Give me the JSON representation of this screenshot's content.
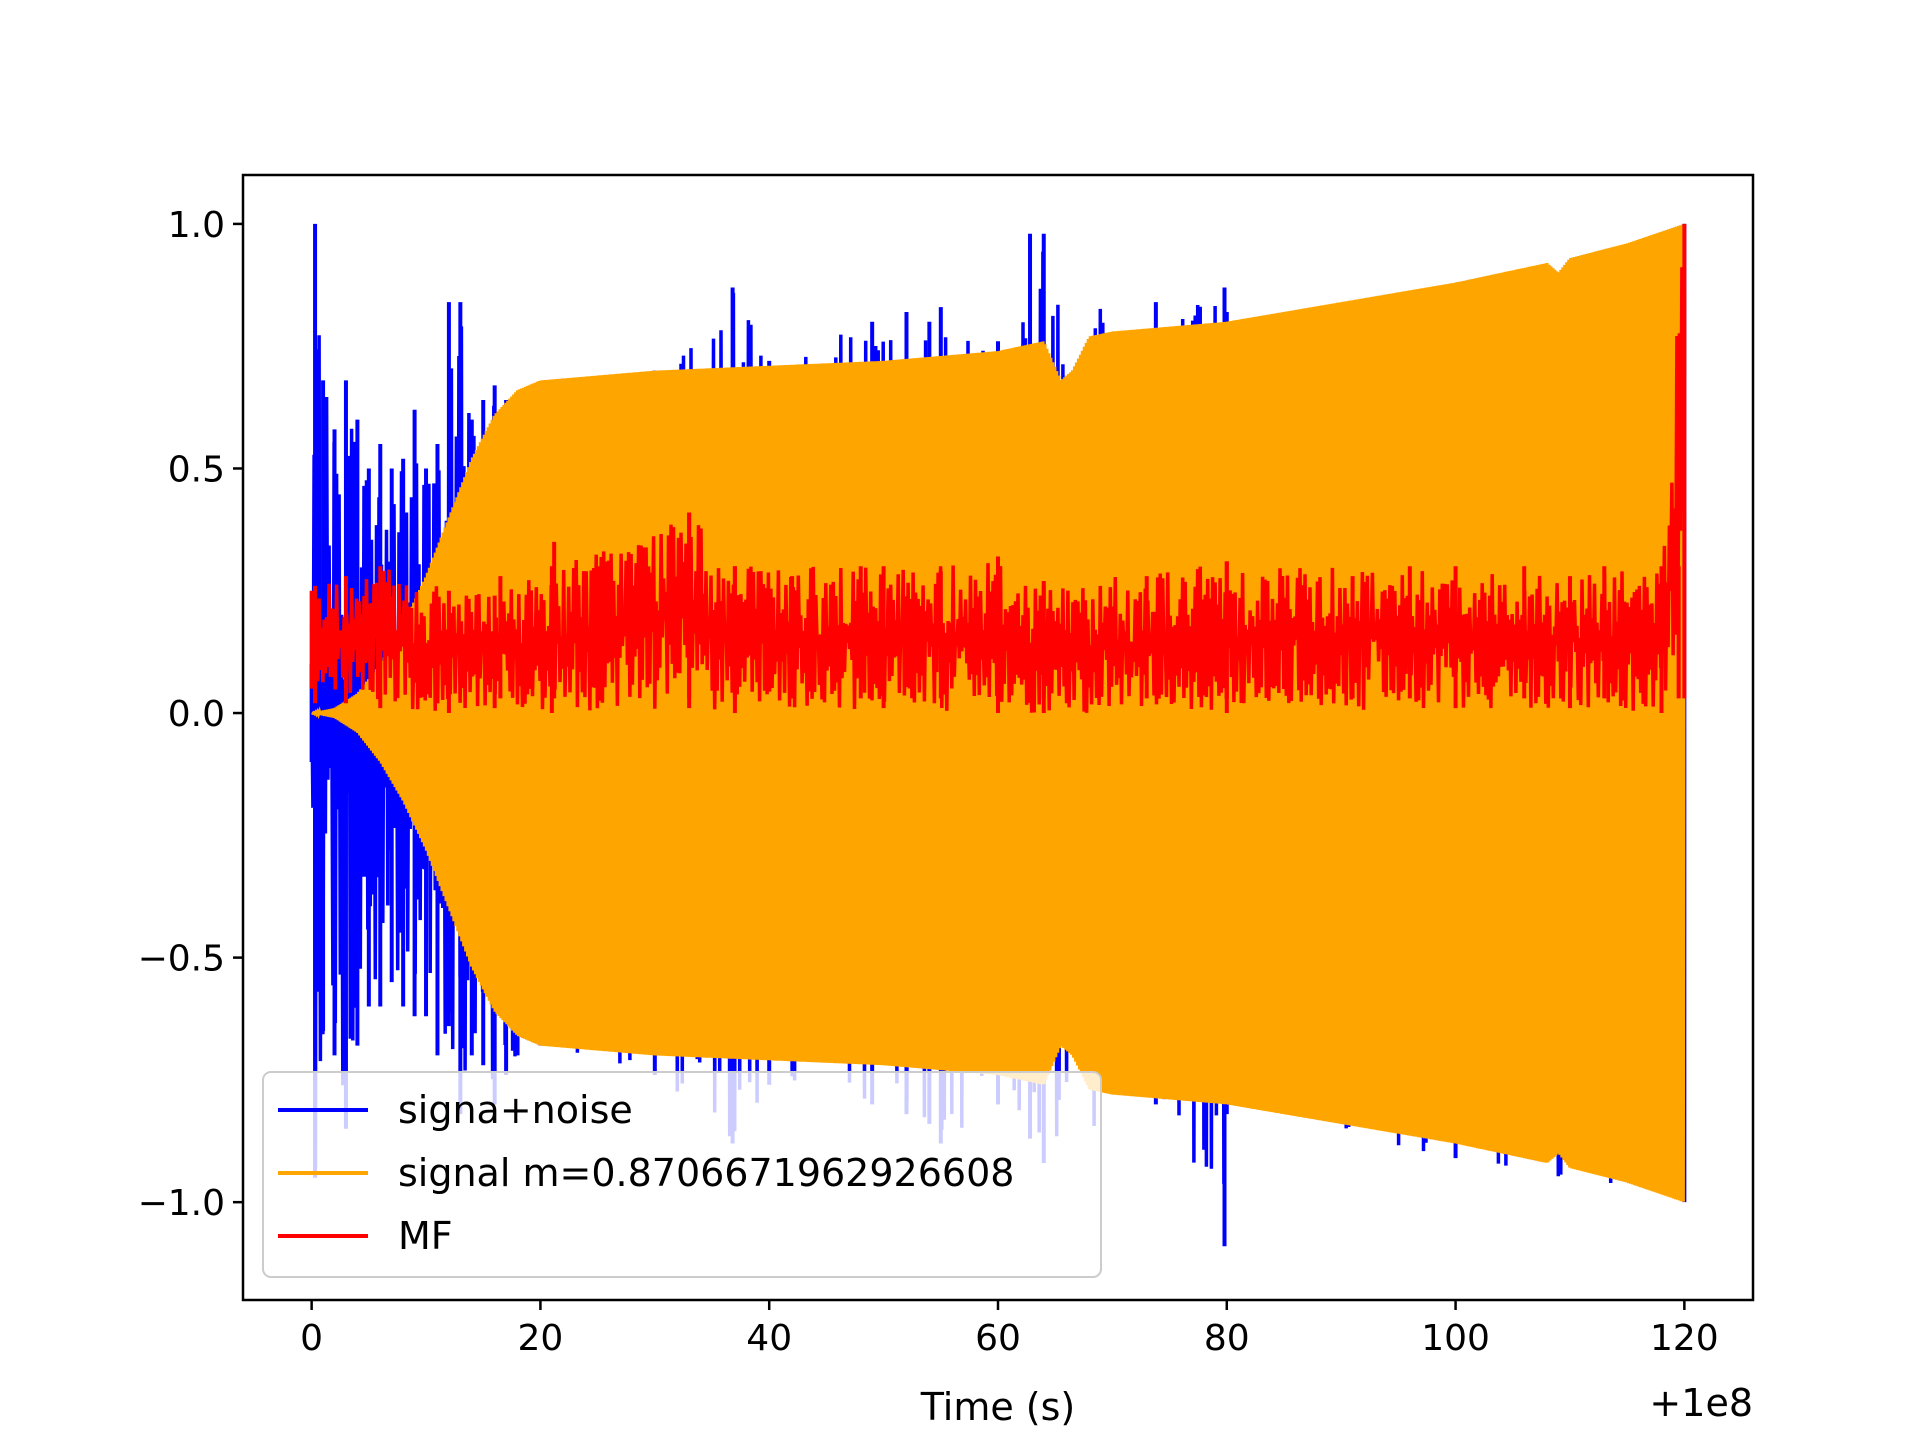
{
  "chart_data": {
    "type": "line",
    "title": "",
    "xlabel": "Time (s)",
    "ylabel": "",
    "x_offset_label": "+1e8",
    "xlim": [
      -6,
      126
    ],
    "ylim": [
      -1.2,
      1.1
    ],
    "x_ticks": [
      0,
      20,
      40,
      60,
      80,
      100,
      120
    ],
    "x_tick_labels": [
      "0",
      "20",
      "40",
      "60",
      "80",
      "100",
      "120"
    ],
    "y_ticks": [
      -1.0,
      -0.5,
      0.0,
      0.5,
      1.0
    ],
    "y_tick_labels": [
      "−1.0",
      "−0.5",
      "0.0",
      "0.5",
      "1.0"
    ],
    "grid": false,
    "legend_position": "lower-left",
    "series": [
      {
        "name": "signa+noise",
        "color": "#0000ff",
        "x": [
          0,
          0.3,
          1,
          2,
          3,
          4,
          5,
          6,
          7,
          8,
          9,
          10,
          11,
          12,
          13,
          14,
          15,
          16,
          17,
          18,
          20,
          30,
          36.8,
          40,
          49,
          52,
          54,
          55,
          60,
          62.8,
          64,
          73.8,
          79.8,
          80,
          100,
          120
        ],
        "upper": [
          0.1,
          1.0,
          0.68,
          0.58,
          0.68,
          0.6,
          0.5,
          0.55,
          0.5,
          0.52,
          0.62,
          0.5,
          0.55,
          0.84,
          0.84,
          0.6,
          0.64,
          0.67,
          0.64,
          0.55,
          0.5,
          0.7,
          0.87,
          0.72,
          0.8,
          0.82,
          0.8,
          0.83,
          0.76,
          0.98,
          0.98,
          0.84,
          0.87,
          0.82,
          0.82,
          1.0
        ],
        "lower": [
          -0.1,
          -0.95,
          -0.65,
          -0.7,
          -0.85,
          -0.68,
          -0.6,
          -0.6,
          -0.55,
          -0.6,
          -0.62,
          -0.62,
          -0.7,
          -0.64,
          -0.82,
          -0.7,
          -0.72,
          -0.8,
          -0.74,
          -0.7,
          -0.68,
          -0.74,
          -0.88,
          -0.76,
          -0.8,
          -0.82,
          -0.84,
          -0.88,
          -0.8,
          -0.87,
          -0.92,
          -0.8,
          -1.09,
          -0.82,
          -0.91,
          -1.0
        ]
      },
      {
        "name": "signal m=0.8706671962926608",
        "color": "#ffa500",
        "x": [
          0,
          2,
          4,
          6,
          8,
          10,
          12,
          14,
          16,
          18,
          20,
          30,
          40,
          50,
          60,
          64,
          65.5,
          66.5,
          68,
          70,
          80,
          90,
          100,
          108,
          109,
          110,
          115,
          120
        ],
        "upper": [
          0.0,
          0.01,
          0.04,
          0.1,
          0.18,
          0.28,
          0.4,
          0.52,
          0.61,
          0.66,
          0.68,
          0.7,
          0.71,
          0.72,
          0.74,
          0.76,
          0.68,
          0.7,
          0.77,
          0.78,
          0.8,
          0.84,
          0.88,
          0.92,
          0.9,
          0.93,
          0.96,
          1.0
        ],
        "lower": [
          0.0,
          -0.01,
          -0.04,
          -0.1,
          -0.18,
          -0.28,
          -0.4,
          -0.52,
          -0.61,
          -0.66,
          -0.68,
          -0.7,
          -0.71,
          -0.72,
          -0.74,
          -0.76,
          -0.68,
          -0.7,
          -0.77,
          -0.78,
          -0.8,
          -0.84,
          -0.88,
          -0.92,
          -0.9,
          -0.93,
          -0.96,
          -1.0
        ]
      },
      {
        "name": "MF",
        "color": "#ff0000",
        "x": [
          0,
          0.3,
          3,
          6,
          12,
          16,
          21,
          33,
          37,
          50,
          60,
          64,
          80,
          100,
          110,
          118,
          120
        ],
        "upper": [
          0.25,
          0.26,
          0.28,
          0.3,
          0.25,
          0.24,
          0.3,
          0.41,
          0.3,
          0.3,
          0.32,
          0.26,
          0.31,
          0.3,
          0.28,
          0.3,
          1.0
        ],
        "lower": [
          0.05,
          0.02,
          0.02,
          0.01,
          0.0,
          0.01,
          0.0,
          0.01,
          0.0,
          0.01,
          0.0,
          0.0,
          0.0,
          0.01,
          0.01,
          0.0,
          0.03
        ],
        "spikes": [
          {
            "x": 16.5,
            "y": 0.28
          },
          {
            "x": 21.2,
            "y": 0.35
          },
          {
            "x": 25,
            "y": 0.3
          },
          {
            "x": 33,
            "y": 0.41
          },
          {
            "x": 37,
            "y": 0.3
          },
          {
            "x": 42,
            "y": 0.28
          },
          {
            "x": 48,
            "y": 0.3
          },
          {
            "x": 55,
            "y": 0.29
          },
          {
            "x": 64,
            "y": 0.27
          },
          {
            "x": 73,
            "y": 0.28
          },
          {
            "x": 80,
            "y": 0.31
          },
          {
            "x": 91,
            "y": 0.28
          },
          {
            "x": 96,
            "y": 0.3
          },
          {
            "x": 106,
            "y": 0.3
          },
          {
            "x": 113,
            "y": 0.3
          },
          {
            "x": 119.5,
            "y": 0.3
          }
        ]
      }
    ],
    "legend": [
      "signa+noise",
      "signal m=0.8706671962926608",
      "MF"
    ]
  }
}
